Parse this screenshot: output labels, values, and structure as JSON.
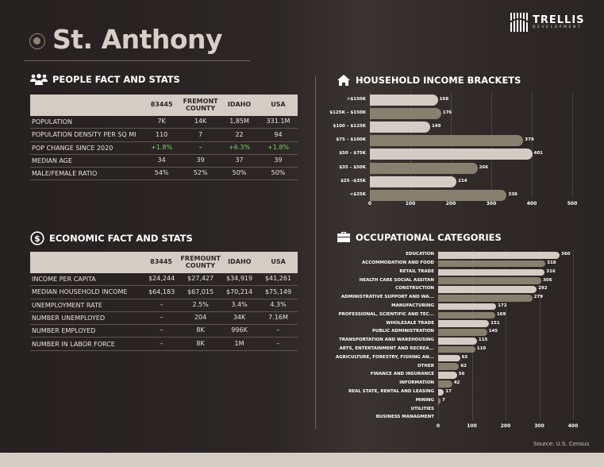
{
  "title": "St. Anthony",
  "logo": {
    "name": "TRELLIS",
    "sub": "DEVELOPMENT"
  },
  "people": {
    "heading": "PEOPLE FACT AND STATS",
    "icon": "users-icon",
    "columns": [
      "83445",
      "FREMONT COUNTY",
      "IDAHO",
      "USA"
    ],
    "rows": [
      {
        "label": "POPULATION",
        "values": [
          "7K",
          "14K",
          "1,85M",
          "331.1M"
        ]
      },
      {
        "label": "POPULATION DENSITY PER SQ MI",
        "values": [
          "110",
          "7",
          "22",
          "94"
        ]
      },
      {
        "label": "POP CHANGE SINCE 2020",
        "values": [
          "+1.8%",
          "–",
          "+6.3%",
          "+1.8%"
        ],
        "green": true
      },
      {
        "label": "MEDIAN AGE",
        "values": [
          "34",
          "39",
          "37",
          "39"
        ]
      },
      {
        "label": "MALE/FEMALE RATIO",
        "values": [
          "54%",
          "52%",
          "50%",
          "50%"
        ]
      }
    ]
  },
  "economic": {
    "heading": "ECONOMIC FACT AND STATS",
    "icon": "dollar-circle-icon",
    "columns": [
      "83445",
      "FREMOUNT COUNTY",
      "IDAHO",
      "USA"
    ],
    "rows": [
      {
        "label": "INCOME PER CAPITA",
        "values": [
          "$24,244",
          "$27,427",
          "$34,919",
          "$41,261"
        ]
      },
      {
        "label": "MEDIAN HOUSEHOLD INCOME",
        "values": [
          "$64,183",
          "$67,015",
          "$70,214",
          "$75,149"
        ]
      },
      {
        "label": "UNEMPLOYMENT RATE",
        "values": [
          "–",
          "2.5%",
          "3.4%",
          "4.3%"
        ]
      },
      {
        "label": "NUMBER UNEMPLOYED",
        "values": [
          "–",
          "204",
          "34K",
          "7.16M"
        ]
      },
      {
        "label": "NUMBER EMPLOYED",
        "values": [
          "–",
          "8K",
          "996K",
          "–"
        ]
      },
      {
        "label": "NUMBER IN LABOR FORCE",
        "values": [
          "–",
          "8K",
          "1M",
          "–"
        ]
      }
    ]
  },
  "colors": {
    "light_bar": "#d4cdc5",
    "dark_bar": "#87806f",
    "green": "#7fcf6a",
    "header_bg": "#d4cdc5"
  },
  "chart_data": [
    {
      "type": "bar",
      "orientation": "horizontal",
      "title": "HOUSEHOLD INCOME BRACKETS",
      "icon": "house-icon",
      "categories": [
        ">$150K",
        "$125K – $150K",
        "$100 – $125K",
        "$75 – $100K",
        "$50 – $75K",
        "$35 – $50K",
        "$25 –$35K",
        "<$25K"
      ],
      "values": [
        168,
        176,
        149,
        379,
        401,
        266,
        214,
        338
      ],
      "xlim": [
        0,
        500
      ],
      "xticks": [
        "0",
        "100",
        "200",
        "300",
        "400",
        "500"
      ],
      "grid": true
    },
    {
      "type": "bar",
      "orientation": "horizontal",
      "title": "OCCUPATIONAL CATEGORIES",
      "icon": "briefcase-icon",
      "categories": [
        "EDUCATION",
        "ACCOMMODATION AND FOOD",
        "RETAIL TRADE",
        "HEALTH CARE SOCIAL ASSITAN",
        "CONSTRUCTION",
        "ADMINISTRATIVE SUPPORT AND WA...",
        "MANUFACTURING",
        "PROFESSIONAL, SCIENTIFIC AND TEC...",
        "WHOLESALE TRADE",
        "PUBLIC ADMINISTRATION",
        "TRANSPORTATION AND WAREHOUSING",
        "ARTS, ENTERTAINMENT AND RECREA...",
        "AGRICULTURE, FORESTRY, FISHING AN...",
        "OTHER",
        "FINANCE AND INSURANCE",
        "INFORMATION",
        "REAL STATE, RENTAL AND LEASING",
        "MINING",
        "UTILITIES",
        "BUSINESS MANAGMENT"
      ],
      "values": [
        360,
        318,
        316,
        306,
        292,
        279,
        172,
        169,
        151,
        145,
        115,
        110,
        65,
        62,
        56,
        42,
        17,
        7,
        null,
        null
      ],
      "xlim": [
        0,
        400
      ],
      "xticks": [
        "0",
        "100",
        "200",
        "300",
        "400"
      ],
      "grid": true
    }
  ],
  "source": "Source: U.S. Census"
}
